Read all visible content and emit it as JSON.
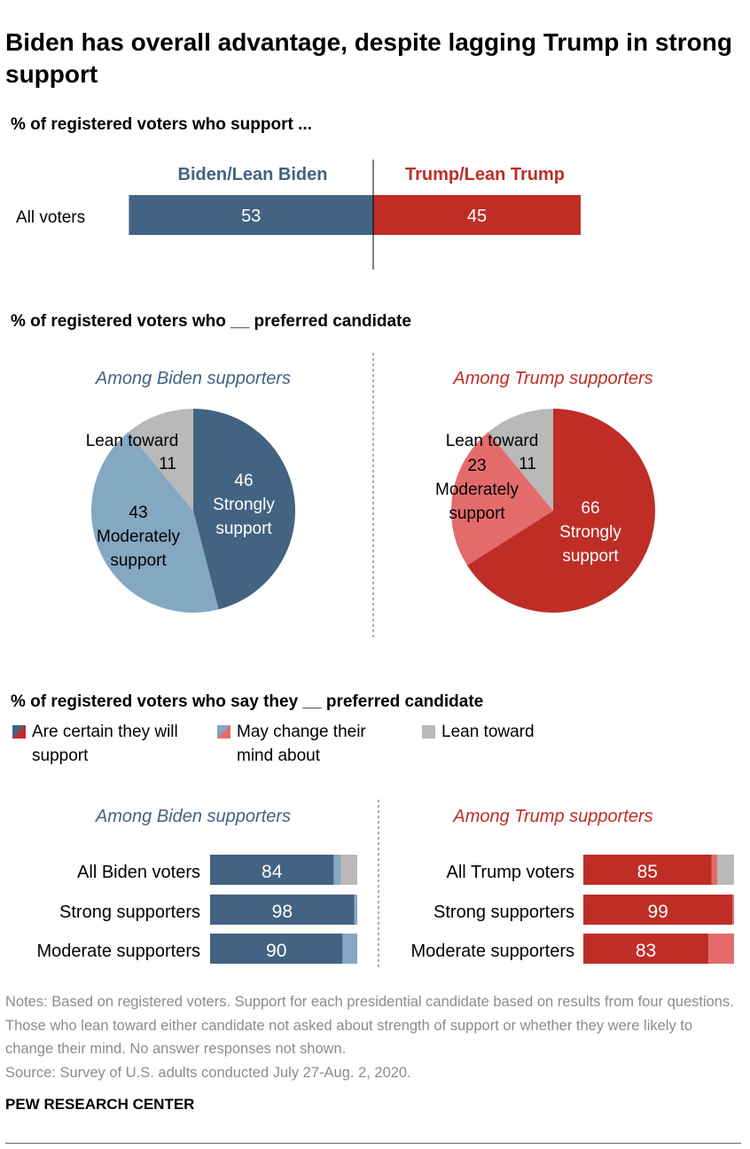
{
  "title": "Biden has overall advantage, despite lagging Trump in strong support",
  "colors": {
    "biden_dark": "#436382",
    "biden_light": "#84a7c2",
    "trump_dark": "#be2e26",
    "trump_light": "#e46b6b",
    "lean": "#b9b9b9"
  },
  "chart_data": [
    {
      "type": "bar",
      "subtitle": "% of registered voters who support ...",
      "categories": [
        "All voters"
      ],
      "series": [
        {
          "name": "Biden/Lean Biden",
          "values": [
            53
          ]
        },
        {
          "name": "Trump/Lean Trump",
          "values": [
            45
          ]
        }
      ]
    },
    {
      "type": "pie",
      "subtitle": "% of registered voters who __ preferred candidate",
      "pies": [
        {
          "title": "Among Biden supporters",
          "slices": [
            {
              "label": "Strongly support",
              "value": 46
            },
            {
              "label": "Moderately support",
              "value": 43
            },
            {
              "label": "Lean toward",
              "value": 11
            }
          ]
        },
        {
          "title": "Among Trump supporters",
          "slices": [
            {
              "label": "Strongly support",
              "value": 66
            },
            {
              "label": "Moderately support",
              "value": 23
            },
            {
              "label": "Lean toward",
              "value": 11
            }
          ]
        }
      ]
    },
    {
      "type": "bar",
      "stacked": true,
      "subtitle": "% of registered voters who say they __ preferred candidate",
      "legend": [
        "Are certain they will support",
        "May change their mind about",
        "Lean toward"
      ],
      "panels": [
        {
          "title": "Among Biden supporters",
          "categories": [
            "All Biden voters",
            "Strong supporters",
            "Moderate supporters"
          ],
          "certain": [
            84,
            98,
            90
          ],
          "may_change": [
            5,
            2,
            10
          ],
          "lean": [
            11,
            0,
            0
          ]
        },
        {
          "title": "Among Trump supporters",
          "categories": [
            "All Trump voters",
            "Strong supporters",
            "Moderate supporters"
          ],
          "certain": [
            85,
            99,
            83
          ],
          "may_change": [
            4,
            1,
            17
          ],
          "lean": [
            11,
            0,
            0
          ]
        }
      ]
    }
  ],
  "notes": "Notes: Based on registered voters. Support for each presidential candidate based on results from four questions. Those who lean toward either candidate not asked about strength of support or whether they were likely to change their mind. No answer responses not shown.",
  "source": "Source: Survey of U.S. adults conducted July 27-Aug. 2, 2020.",
  "footer": "PEW RESEARCH CENTER"
}
